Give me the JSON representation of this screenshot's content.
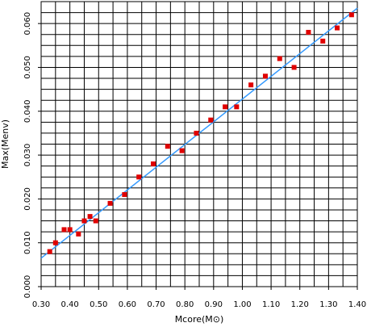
{
  "chart_data": {
    "type": "scatter",
    "xlabel": "Mcore(M⊙)",
    "ylabel": "Max(Menv)",
    "xlim": [
      0.3,
      1.4
    ],
    "ylim": [
      0.0,
      0.065
    ],
    "x_ticks": [
      0.3,
      0.4,
      0.5,
      0.6,
      0.7,
      0.8,
      0.9,
      1.0,
      1.1,
      1.2,
      1.3,
      1.4
    ],
    "x_tick_labels": [
      "0.30",
      "0.40",
      "0.50",
      "0.60",
      "0.70",
      "0.80",
      "0.90",
      "1.00",
      "1.10",
      "1.20",
      "1.30",
      "1.40"
    ],
    "y_ticks": [
      0.0,
      0.01,
      0.02,
      0.03,
      0.04,
      0.05,
      0.06
    ],
    "y_tick_labels": [
      "0.000",
      "0.010",
      "0.020",
      "0.030",
      "0.040",
      "0.050",
      "0.060"
    ],
    "grid": true,
    "x_minor_step": 0.05,
    "y_minor_step": 0.0025,
    "series": [
      {
        "kind": "points",
        "color": "#e00000",
        "marker": "square",
        "x": [
          0.33,
          0.35,
          0.38,
          0.4,
          0.43,
          0.45,
          0.47,
          0.49,
          0.54,
          0.59,
          0.64,
          0.69,
          0.74,
          0.79,
          0.84,
          0.89,
          0.94,
          0.98,
          1.03,
          1.08,
          1.13,
          1.18,
          1.23,
          1.28,
          1.33,
          1.38
        ],
        "y": [
          0.008,
          0.01,
          0.013,
          0.013,
          0.012,
          0.015,
          0.016,
          0.015,
          0.019,
          0.021,
          0.025,
          0.028,
          0.032,
          0.031,
          0.035,
          0.038,
          0.041,
          0.041,
          0.046,
          0.048,
          0.052,
          0.05,
          0.058,
          0.056,
          0.059,
          0.062
        ]
      },
      {
        "kind": "fit-line",
        "color": "#3399ff",
        "x": [
          0.3,
          1.4
        ],
        "y": [
          0.0065,
          0.0635
        ]
      }
    ]
  }
}
